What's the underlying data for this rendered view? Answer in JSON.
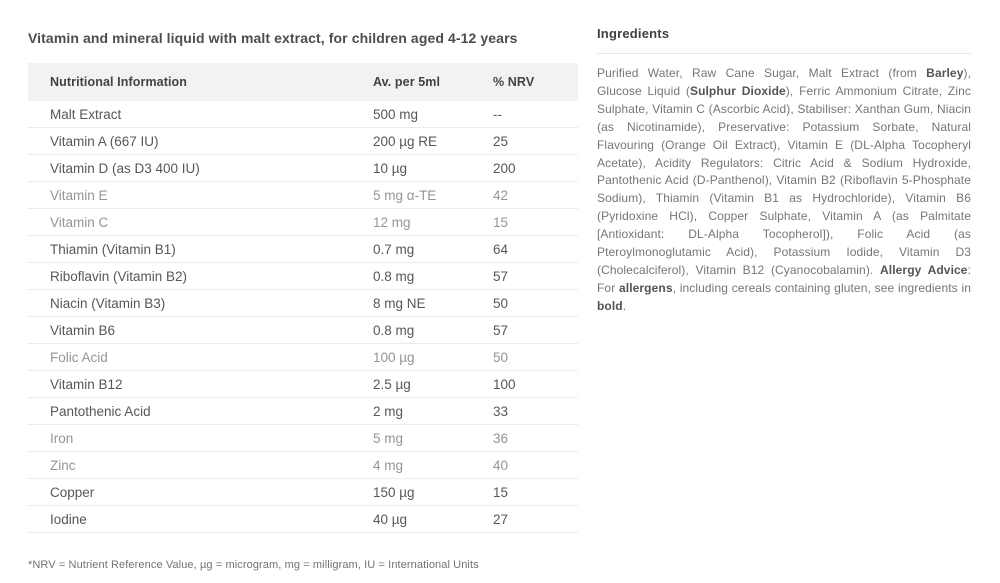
{
  "title": "Vitamin and mineral liquid with malt extract, for children aged 4-12 years",
  "table": {
    "headers": [
      "Nutritional Information",
      "Av. per 5ml",
      "% NRV"
    ],
    "rows": [
      {
        "name": "Malt Extract",
        "amount": "500 mg",
        "nrv": "--",
        "muted": false
      },
      {
        "name": "Vitamin A (667 IU)",
        "amount": "200 µg RE",
        "nrv": "25",
        "muted": false
      },
      {
        "name": "Vitamin D (as D3 400 IU)",
        "amount": "10 µg",
        "nrv": "200",
        "muted": false
      },
      {
        "name": "Vitamin E",
        "amount": "5 mg α-TE",
        "nrv": "42",
        "muted": true
      },
      {
        "name": "Vitamin C",
        "amount": "12 mg",
        "nrv": "15",
        "muted": true
      },
      {
        "name": "Thiamin (Vitamin B1)",
        "amount": "0.7 mg",
        "nrv": "64",
        "muted": false
      },
      {
        "name": "Riboflavin (Vitamin B2)",
        "amount": "0.8 mg",
        "nrv": "57",
        "muted": false
      },
      {
        "name": "Niacin (Vitamin B3)",
        "amount": "8 mg NE",
        "nrv": "50",
        "muted": false
      },
      {
        "name": "Vitamin B6",
        "amount": "0.8 mg",
        "nrv": "57",
        "muted": false
      },
      {
        "name": "Folic Acid",
        "amount": "100 µg",
        "nrv": "50",
        "muted": true
      },
      {
        "name": "Vitamin B12",
        "amount": "2.5 µg",
        "nrv": "100",
        "muted": false
      },
      {
        "name": "Pantothenic Acid",
        "amount": "2 mg",
        "nrv": "33",
        "muted": false
      },
      {
        "name": "Iron",
        "amount": "5 mg",
        "nrv": "36",
        "muted": true
      },
      {
        "name": "Zinc",
        "amount": "4 mg",
        "nrv": "40",
        "muted": true
      },
      {
        "name": "Copper",
        "amount": "150 µg",
        "nrv": "15",
        "muted": false
      },
      {
        "name": "Iodine",
        "amount": "40 µg",
        "nrv": "27",
        "muted": false
      }
    ]
  },
  "footnote": "*NRV = Nutrient Reference Value, µg = microgram, mg = milligram, IU = International Units",
  "ingredients": {
    "heading": "Ingredients",
    "segments": [
      {
        "text": "Purified Water, Raw Cane Sugar, Malt Extract (from ",
        "bold": false
      },
      {
        "text": "Barley",
        "bold": true
      },
      {
        "text": "), Glucose Liquid (",
        "bold": false
      },
      {
        "text": "Sulphur Dioxide",
        "bold": true
      },
      {
        "text": "), Ferric Ammonium Citrate, Zinc Sulphate, Vitamin C (Ascorbic Acid), Stabiliser: Xanthan Gum, Niacin (as Nicotinamide), Preservative: Potassium Sorbate, Natural Flavouring (Orange Oil Extract), Vitamin E (DL-Alpha Tocopheryl Acetate), Acidity Regulators: Citric Acid & Sodium Hydroxide, Pantothenic Acid (D-Panthenol), Vitamin B2 (Riboflavin 5-Phosphate Sodium), Thiamin (Vitamin B1 as Hydrochloride), Vitamin B6 (Pyridoxine HCl), Copper Sulphate, Vitamin A (as Palmitate [Antioxidant: DL-Alpha Tocopherol]), Folic Acid (as Pteroylmonoglutamic Acid), Potassium Iodide, Vitamin D3 (Cholecalciferol), Vitamin B12 (Cyanocobalamin). ",
        "bold": false
      },
      {
        "text": "Allergy Advice",
        "bold": true
      },
      {
        "text": ": For ",
        "bold": false
      },
      {
        "text": "allergens",
        "bold": true
      },
      {
        "text": ", including cereals containing gluten, see ingredients in ",
        "bold": false
      },
      {
        "text": "bold",
        "bold": true
      },
      {
        "text": ".",
        "bold": false
      }
    ]
  },
  "colors": {
    "header_row_bg": "#f2f2f3",
    "row_text": "#55575b",
    "row_text_muted": "#939599",
    "row_divider": "#ececee",
    "heading_text": "#3e4145",
    "body_text": "#747679"
  }
}
